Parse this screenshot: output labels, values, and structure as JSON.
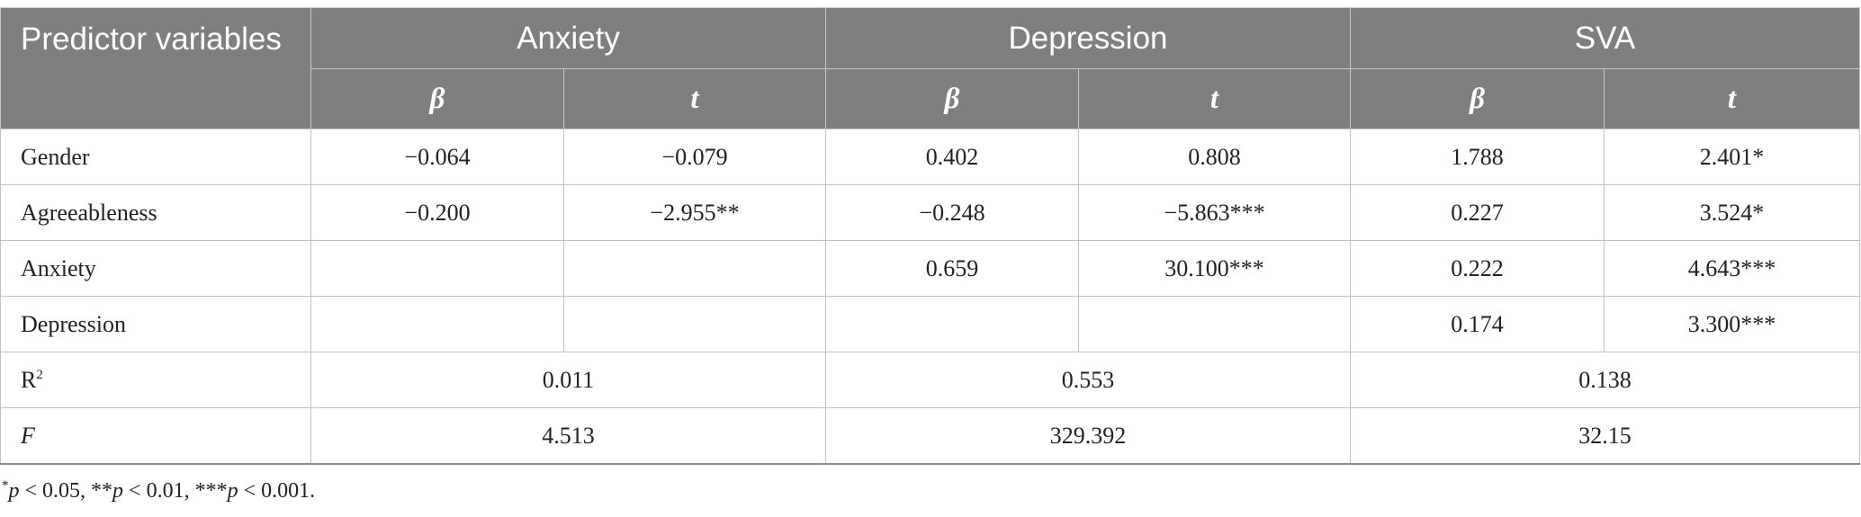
{
  "table": {
    "header": {
      "predictor_label": "Predictor variables",
      "groups": [
        "Anxiety",
        "Depression",
        "SVA"
      ],
      "beta_symbol": "β",
      "t_symbol": "t"
    },
    "rows": [
      {
        "label": "Gender",
        "cells": [
          "−0.064",
          "−0.079",
          "0.402",
          "0.808",
          "1.788",
          "2.401*"
        ]
      },
      {
        "label": "Agreeableness",
        "cells": [
          "−0.200",
          "−2.955**",
          "−0.248",
          "−5.863***",
          "0.227",
          "3.524*"
        ]
      },
      {
        "label": "Anxiety",
        "cells": [
          "",
          "",
          "0.659",
          "30.100***",
          "0.222",
          "4.643***"
        ]
      },
      {
        "label": "Depression",
        "cells": [
          "",
          "",
          "",
          "",
          "0.174",
          "3.300***"
        ]
      }
    ],
    "r2": {
      "label_base": "R",
      "label_sup": "2",
      "values": [
        "0.011",
        "0.553",
        "0.138"
      ]
    },
    "f": {
      "label": "F",
      "values": [
        "4.513",
        "329.392",
        "32.15"
      ]
    }
  },
  "footnote": {
    "parts": [
      {
        "sup": "*",
        "p": "p",
        "text": " < 0.05, "
      },
      {
        "sup": "",
        "p": "",
        "text": "**"
      },
      {
        "sup": "",
        "p": "p",
        "text": " < 0.01, "
      },
      {
        "sup": "",
        "p": "",
        "text": "***"
      },
      {
        "sup": "",
        "p": "p",
        "text": " < 0.001."
      }
    ]
  }
}
